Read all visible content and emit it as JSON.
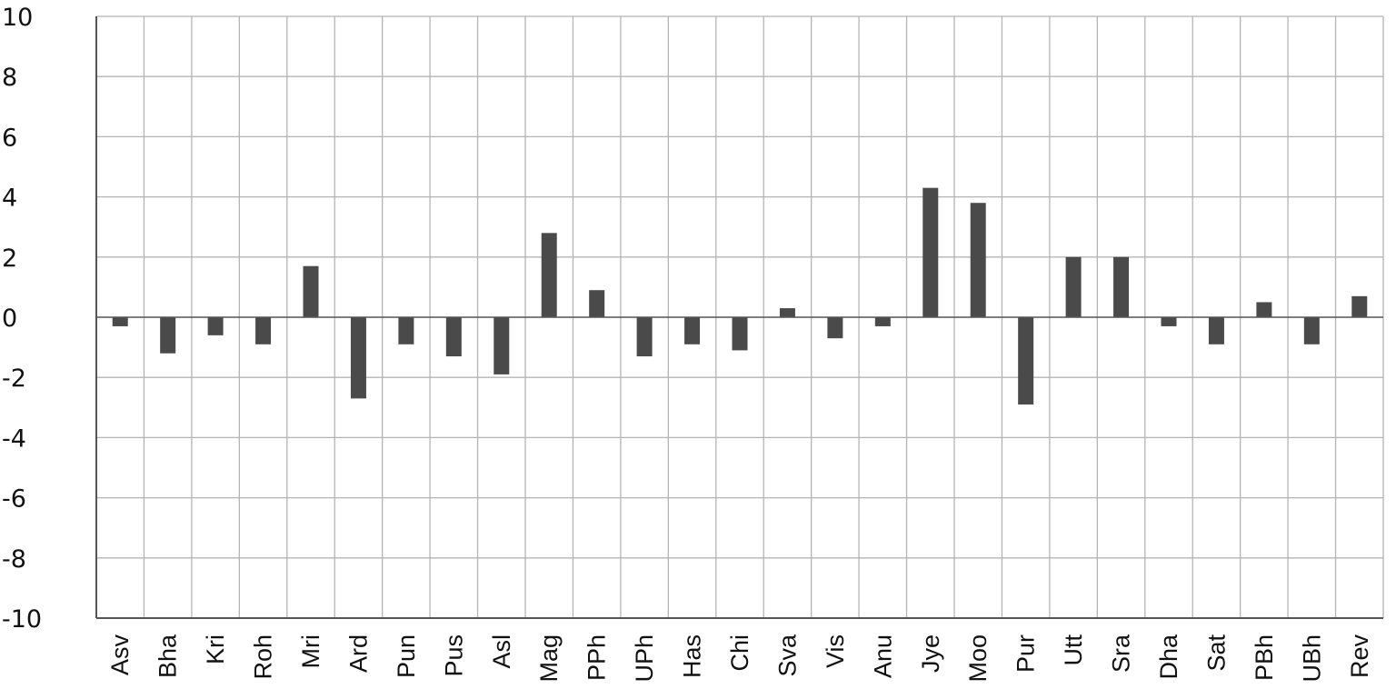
{
  "chart_data": {
    "type": "bar",
    "categories": [
      "Asv",
      "Bha",
      "Kri",
      "Roh",
      "Mri",
      "Ard",
      "Pun",
      "Pus",
      "Asl",
      "Mag",
      "PPh",
      "UPh",
      "Has",
      "Chi",
      "Sva",
      "Vis",
      "Anu",
      "Jye",
      "Moo",
      "Pur",
      "Utt",
      "Sra",
      "Dha",
      "Sat",
      "PBh",
      "UBh",
      "Rev"
    ],
    "values": [
      -0.3,
      -1.2,
      -0.6,
      -0.9,
      1.7,
      -2.7,
      -0.9,
      -1.3,
      -1.9,
      2.8,
      0.9,
      -1.3,
      -0.9,
      -1.1,
      0.3,
      -0.7,
      -0.3,
      4.3,
      3.8,
      -2.9,
      2.0,
      2.0,
      -0.3,
      -0.9,
      0.5,
      -0.9,
      0.7
    ],
    "yticks": [
      "10",
      "8",
      "6",
      "4",
      "2",
      "0",
      "-2",
      "-4",
      "-6",
      "-8",
      "-10"
    ],
    "ylim": [
      -10,
      10
    ],
    "grid": true,
    "bar_color": "#4a4a4a"
  }
}
